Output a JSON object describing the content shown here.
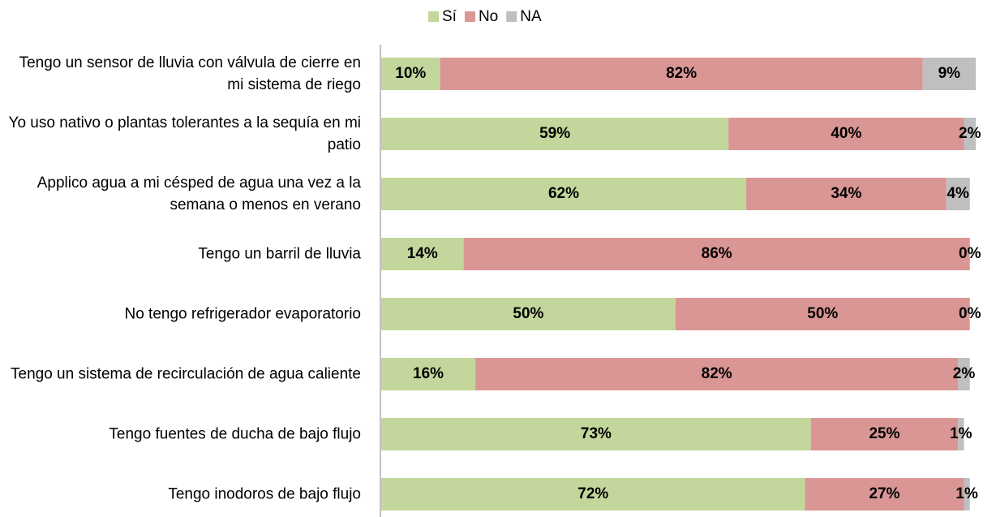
{
  "chart_data": {
    "type": "bar",
    "orientation": "horizontal",
    "stacked": true,
    "categories": [
      "Tengo un sensor de lluvia con válvula de cierre en mi sistema de riego",
      "Yo uso nativo o plantas tolerantes a la sequía en mi patio",
      "Applico agua a mi césped de agua una vez a la semana o menos en verano",
      "Tengo un barril de lluvia",
      "No tengo refrigerador evaporatorio",
      "Tengo un sistema de recirculación de agua caliente",
      "Tengo fuentes de ducha de bajo flujo",
      "Tengo inodoros de bajo flujo"
    ],
    "series": [
      {
        "name": "Sí",
        "color": "#c3d69b",
        "values": [
          10,
          59,
          62,
          14,
          50,
          16,
          73,
          72
        ],
        "value_labels": [
          "10%",
          "59%",
          "62%",
          "14%",
          "50%",
          "16%",
          "73%",
          "72%"
        ]
      },
      {
        "name": "No",
        "color": "#d99694",
        "values": [
          82,
          40,
          34,
          86,
          50,
          82,
          25,
          27
        ],
        "value_labels": [
          "82%",
          "40%",
          "34%",
          "86%",
          "50%",
          "82%",
          "25%",
          "27%"
        ]
      },
      {
        "name": "NA",
        "color": "#bfbfbf",
        "values": [
          9,
          2,
          4,
          0,
          0,
          2,
          1,
          1
        ],
        "value_labels": [
          "9%",
          "2%",
          "4%",
          "0%",
          "0%",
          "2%",
          "1%",
          "1%"
        ]
      }
    ],
    "legend": "top"
  }
}
